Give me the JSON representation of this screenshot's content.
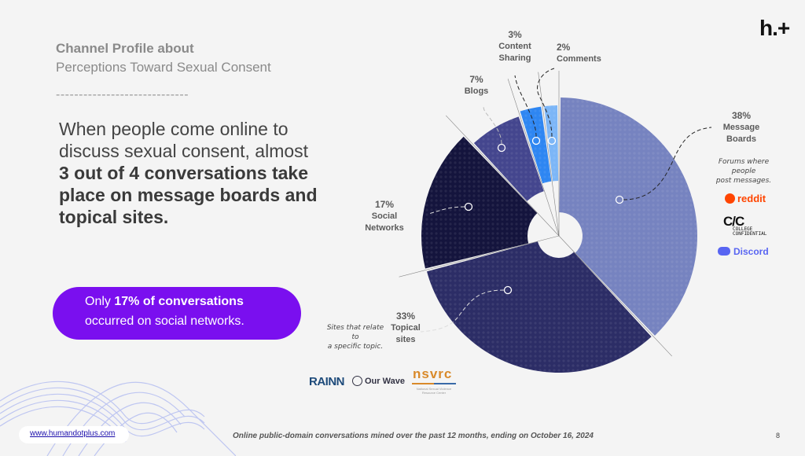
{
  "header": {
    "title_line1": "Channel Profile about",
    "title_line2": "Perceptions Toward Sexual Consent",
    "divider": "-----------------------------"
  },
  "brand": {
    "logo_text": "h.+",
    "url": "www.humandotplus.com"
  },
  "headline": {
    "part1": "When people come online to discuss sexual consent, almost ",
    "bold": "3 out of 4 conversations take place on message boards and topical sites."
  },
  "callout": {
    "prefix": "Only ",
    "bold": "17% of conversations",
    "line2": "occurred on social networks.",
    "color": "#7a0fef"
  },
  "chart_data": {
    "type": "pie",
    "title": "Channel Profile about Perceptions Toward Sexual Consent",
    "slices": [
      {
        "label": "Message Boards",
        "value": 38,
        "pct_label": "38%",
        "color": "#7683c0"
      },
      {
        "label": "Topical sites",
        "value": 33,
        "pct_label": "33%",
        "color": "#2c2d66"
      },
      {
        "label": "Social Networks",
        "value": 17,
        "pct_label": "17%",
        "color": "#14143d"
      },
      {
        "label": "Blogs",
        "value": 7,
        "pct_label": "7%",
        "color": "#44468e"
      },
      {
        "label": "Content Sharing",
        "value": 3,
        "pct_label": "3%",
        "color": "#2e86f2"
      },
      {
        "label": "Comments",
        "value": 2,
        "pct_label": "2%",
        "color": "#7cb6f7"
      }
    ],
    "label_lines": {
      "message_boards": [
        "Message",
        "Boards"
      ],
      "topical": [
        "Topical",
        "sites"
      ],
      "social": [
        "Social",
        "Networks"
      ],
      "blogs": [
        "Blogs"
      ],
      "content": [
        "Content",
        "Sharing"
      ],
      "comments": [
        "Comments"
      ]
    }
  },
  "notes": {
    "message_boards": [
      "Forums  where",
      "people",
      "post  messages."
    ],
    "topical": [
      "Sites that relate",
      "to",
      "a specific topic."
    ]
  },
  "logos": {
    "reddit": "reddit",
    "college_confidential": {
      "mark": "C/C",
      "text": "COLLEGE CONFIDENTIAL"
    },
    "discord": "Discord",
    "rainn": "RAINN",
    "ourwave": "Our Wave",
    "nsvrc": "nsvrc",
    "nsvrc_sub": "National Sexual Violence Resource Center"
  },
  "footer": {
    "source": "Online public-domain conversations mined over the past 12 months, ending on October 16, 2024",
    "page_number": "8"
  }
}
